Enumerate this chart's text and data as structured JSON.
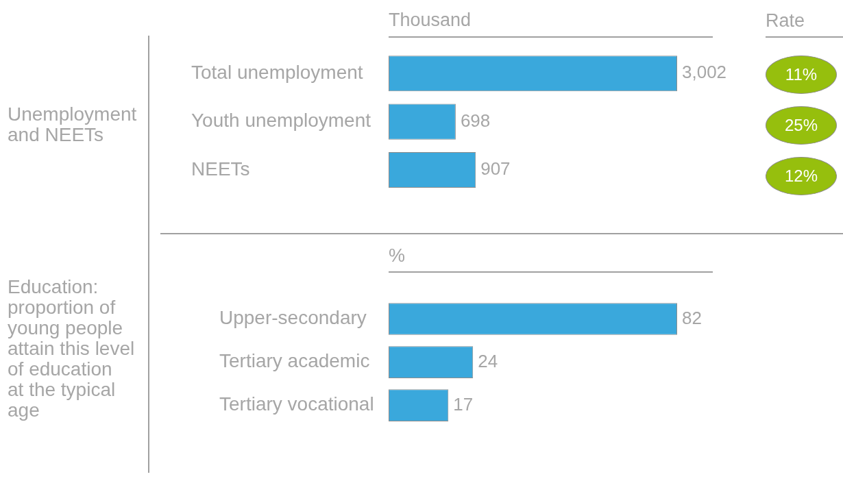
{
  "chart_data": [
    {
      "type": "bar",
      "orientation": "horizontal",
      "title": "Unemployment and NEETs",
      "xlabel": "Thousand",
      "categories": [
        "Total unemployment",
        "Youth unemployment",
        "NEETs"
      ],
      "values": [
        3002,
        698,
        907
      ],
      "value_labels": [
        "3,002",
        "698",
        "907"
      ],
      "color": "#3aa8dc"
    },
    {
      "type": "other",
      "title": "Rate",
      "annotations": [
        "11%",
        "25%",
        "12%"
      ]
    },
    {
      "type": "bar",
      "orientation": "horizontal",
      "title": "Education:\nproportion of\nyoung people\nattain this level\nof education\nat the typical\nage",
      "xlabel": "%",
      "categories": [
        "Upper-secondary",
        "Tertiary academic",
        "Tertiary vocational"
      ],
      "values": [
        82,
        24,
        17
      ],
      "data_labels": true,
      "color": "#3aa8dc"
    }
  ]
}
